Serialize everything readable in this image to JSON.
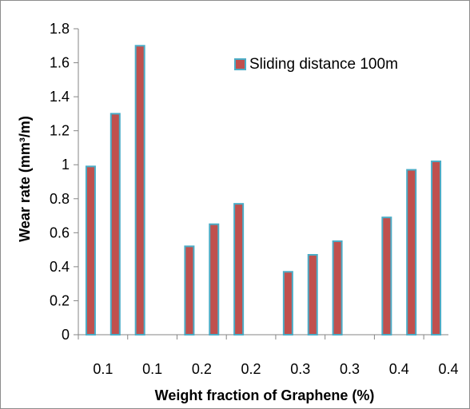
{
  "chart_data": {
    "type": "bar",
    "title": "",
    "xlabel": "Weight fraction of Graphene (%)",
    "ylabel": "Wear rate (mm³/m)",
    "ylim": [
      0,
      1.8
    ],
    "yticks": [
      "0",
      "0.2",
      "0.4",
      "0.6",
      "0.8",
      "1",
      "1.2",
      "1.4",
      "1.6",
      "1.8"
    ],
    "categories": [
      "0.1",
      "0.1",
      "0.1",
      "",
      "0.2",
      "0.2",
      "0.2",
      "",
      "0.3",
      "0.3",
      "0.3",
      "",
      "0.4",
      "0.4",
      "0.4"
    ],
    "visible_tick_labels": [
      "0.1",
      "0.1",
      "0.2",
      "0.2",
      "0.3",
      "0.3",
      "0.4",
      "0.4"
    ],
    "series": [
      {
        "name": "Sliding distance 100m",
        "values": [
          0.99,
          1.3,
          1.7,
          null,
          0.52,
          0.65,
          0.77,
          null,
          0.37,
          0.47,
          0.55,
          null,
          0.69,
          0.97,
          1.02
        ]
      }
    ],
    "grid": false,
    "legend": "top-right",
    "colors": {
      "bar_fill": "#c0504d",
      "bar_border": "#4bacc6"
    }
  }
}
